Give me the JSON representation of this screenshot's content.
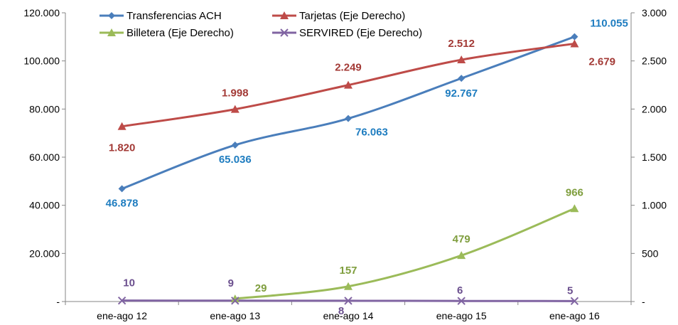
{
  "chart_data": {
    "type": "line",
    "categories": [
      "ene-ago 12",
      "ene-ago 13",
      "ene-ago 14",
      "ene-ago 15",
      "ene-ago 16"
    ],
    "y_left": {
      "range": [
        0,
        120000
      ],
      "ticks": [
        "-",
        "20.000",
        "40.000",
        "60.000",
        "80.000",
        "100.000",
        "120.000"
      ]
    },
    "y_right": {
      "range": [
        0,
        3000
      ],
      "ticks": [
        "-",
        "500",
        "1.000",
        "1.500",
        "2.000",
        "2.500",
        "3.000"
      ]
    },
    "grid": false,
    "legend_position": "top",
    "series": [
      {
        "name": "Transferencias ACH",
        "axis": "left",
        "color": "#4A7EBB",
        "label_color": "#1F7DC0",
        "marker": "diamond",
        "values": [
          46878,
          65036,
          76063,
          92767,
          110055
        ],
        "labels": [
          "46.878",
          "65.036",
          "76.063",
          "92.767",
          "110.055"
        ]
      },
      {
        "name": "Tarjetas (Eje Derecho)",
        "axis": "right",
        "color": "#BE4B48",
        "label_color": "#A33A36",
        "marker": "triangle",
        "values": [
          1820,
          1998,
          2249,
          2512,
          2679
        ],
        "labels": [
          "1.820",
          "1.998",
          "2.249",
          "2.512",
          "2.679"
        ]
      },
      {
        "name": "Billetera (Eje Derecho)",
        "axis": "right",
        "color": "#9BBB59",
        "label_color": "#7F9E3E",
        "marker": "triangle",
        "values": [
          null,
          29,
          157,
          479,
          966
        ],
        "labels": [
          null,
          "29",
          "157",
          "479",
          "966"
        ]
      },
      {
        "name": "SERVIRED (Eje Derecho)",
        "axis": "right",
        "color": "#8064A2",
        "label_color": "#6B4F8E",
        "marker": "x",
        "values": [
          10,
          9,
          8,
          6,
          5
        ],
        "labels": [
          "10",
          "9",
          "8",
          "6",
          "5"
        ]
      }
    ]
  }
}
